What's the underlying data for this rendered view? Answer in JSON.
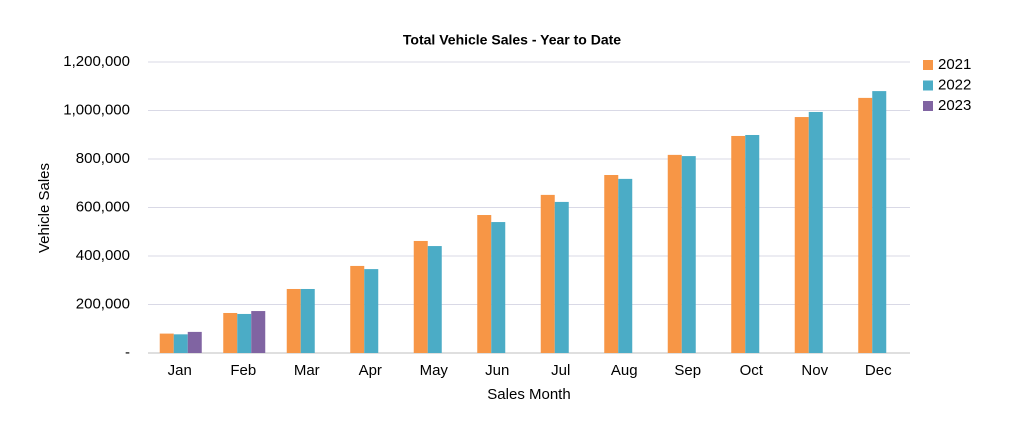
{
  "chart_data": {
    "type": "bar",
    "title": "Total Vehicle Sales - Year to Date",
    "x_label": "Sales Month",
    "y_label": "Vehicle Sales",
    "categories": [
      "Jan",
      "Feb",
      "Mar",
      "Apr",
      "May",
      "Jun",
      "Jul",
      "Aug",
      "Sep",
      "Oct",
      "Nov",
      "Dec"
    ],
    "series": [
      {
        "name": "2021",
        "color": "#f79646",
        "values": [
          80000,
          165000,
          264000,
          359000,
          462000,
          569000,
          652000,
          734000,
          817000,
          895000,
          973000,
          1052000
        ]
      },
      {
        "name": "2022",
        "color": "#4bacc6",
        "values": [
          77000,
          161000,
          264000,
          346000,
          441000,
          540000,
          623000,
          718000,
          812000,
          899000,
          994000,
          1080000
        ]
      },
      {
        "name": "2023",
        "color": "#8064a2",
        "values": [
          87000,
          173000,
          null,
          null,
          null,
          null,
          null,
          null,
          null,
          null,
          null,
          null
        ]
      }
    ],
    "ylim": [
      0,
      1200000
    ],
    "yticks": [
      {
        "value": 0,
        "label": "-"
      },
      {
        "value": 200000,
        "label": "200,000"
      },
      {
        "value": 400000,
        "label": "400,000"
      },
      {
        "value": 600000,
        "label": "600,000"
      },
      {
        "value": 800000,
        "label": "800,000"
      },
      {
        "value": 1000000,
        "label": "1,000,000"
      },
      {
        "value": 1200000,
        "label": "1,200,000"
      }
    ],
    "grid": true,
    "legend": "right"
  }
}
